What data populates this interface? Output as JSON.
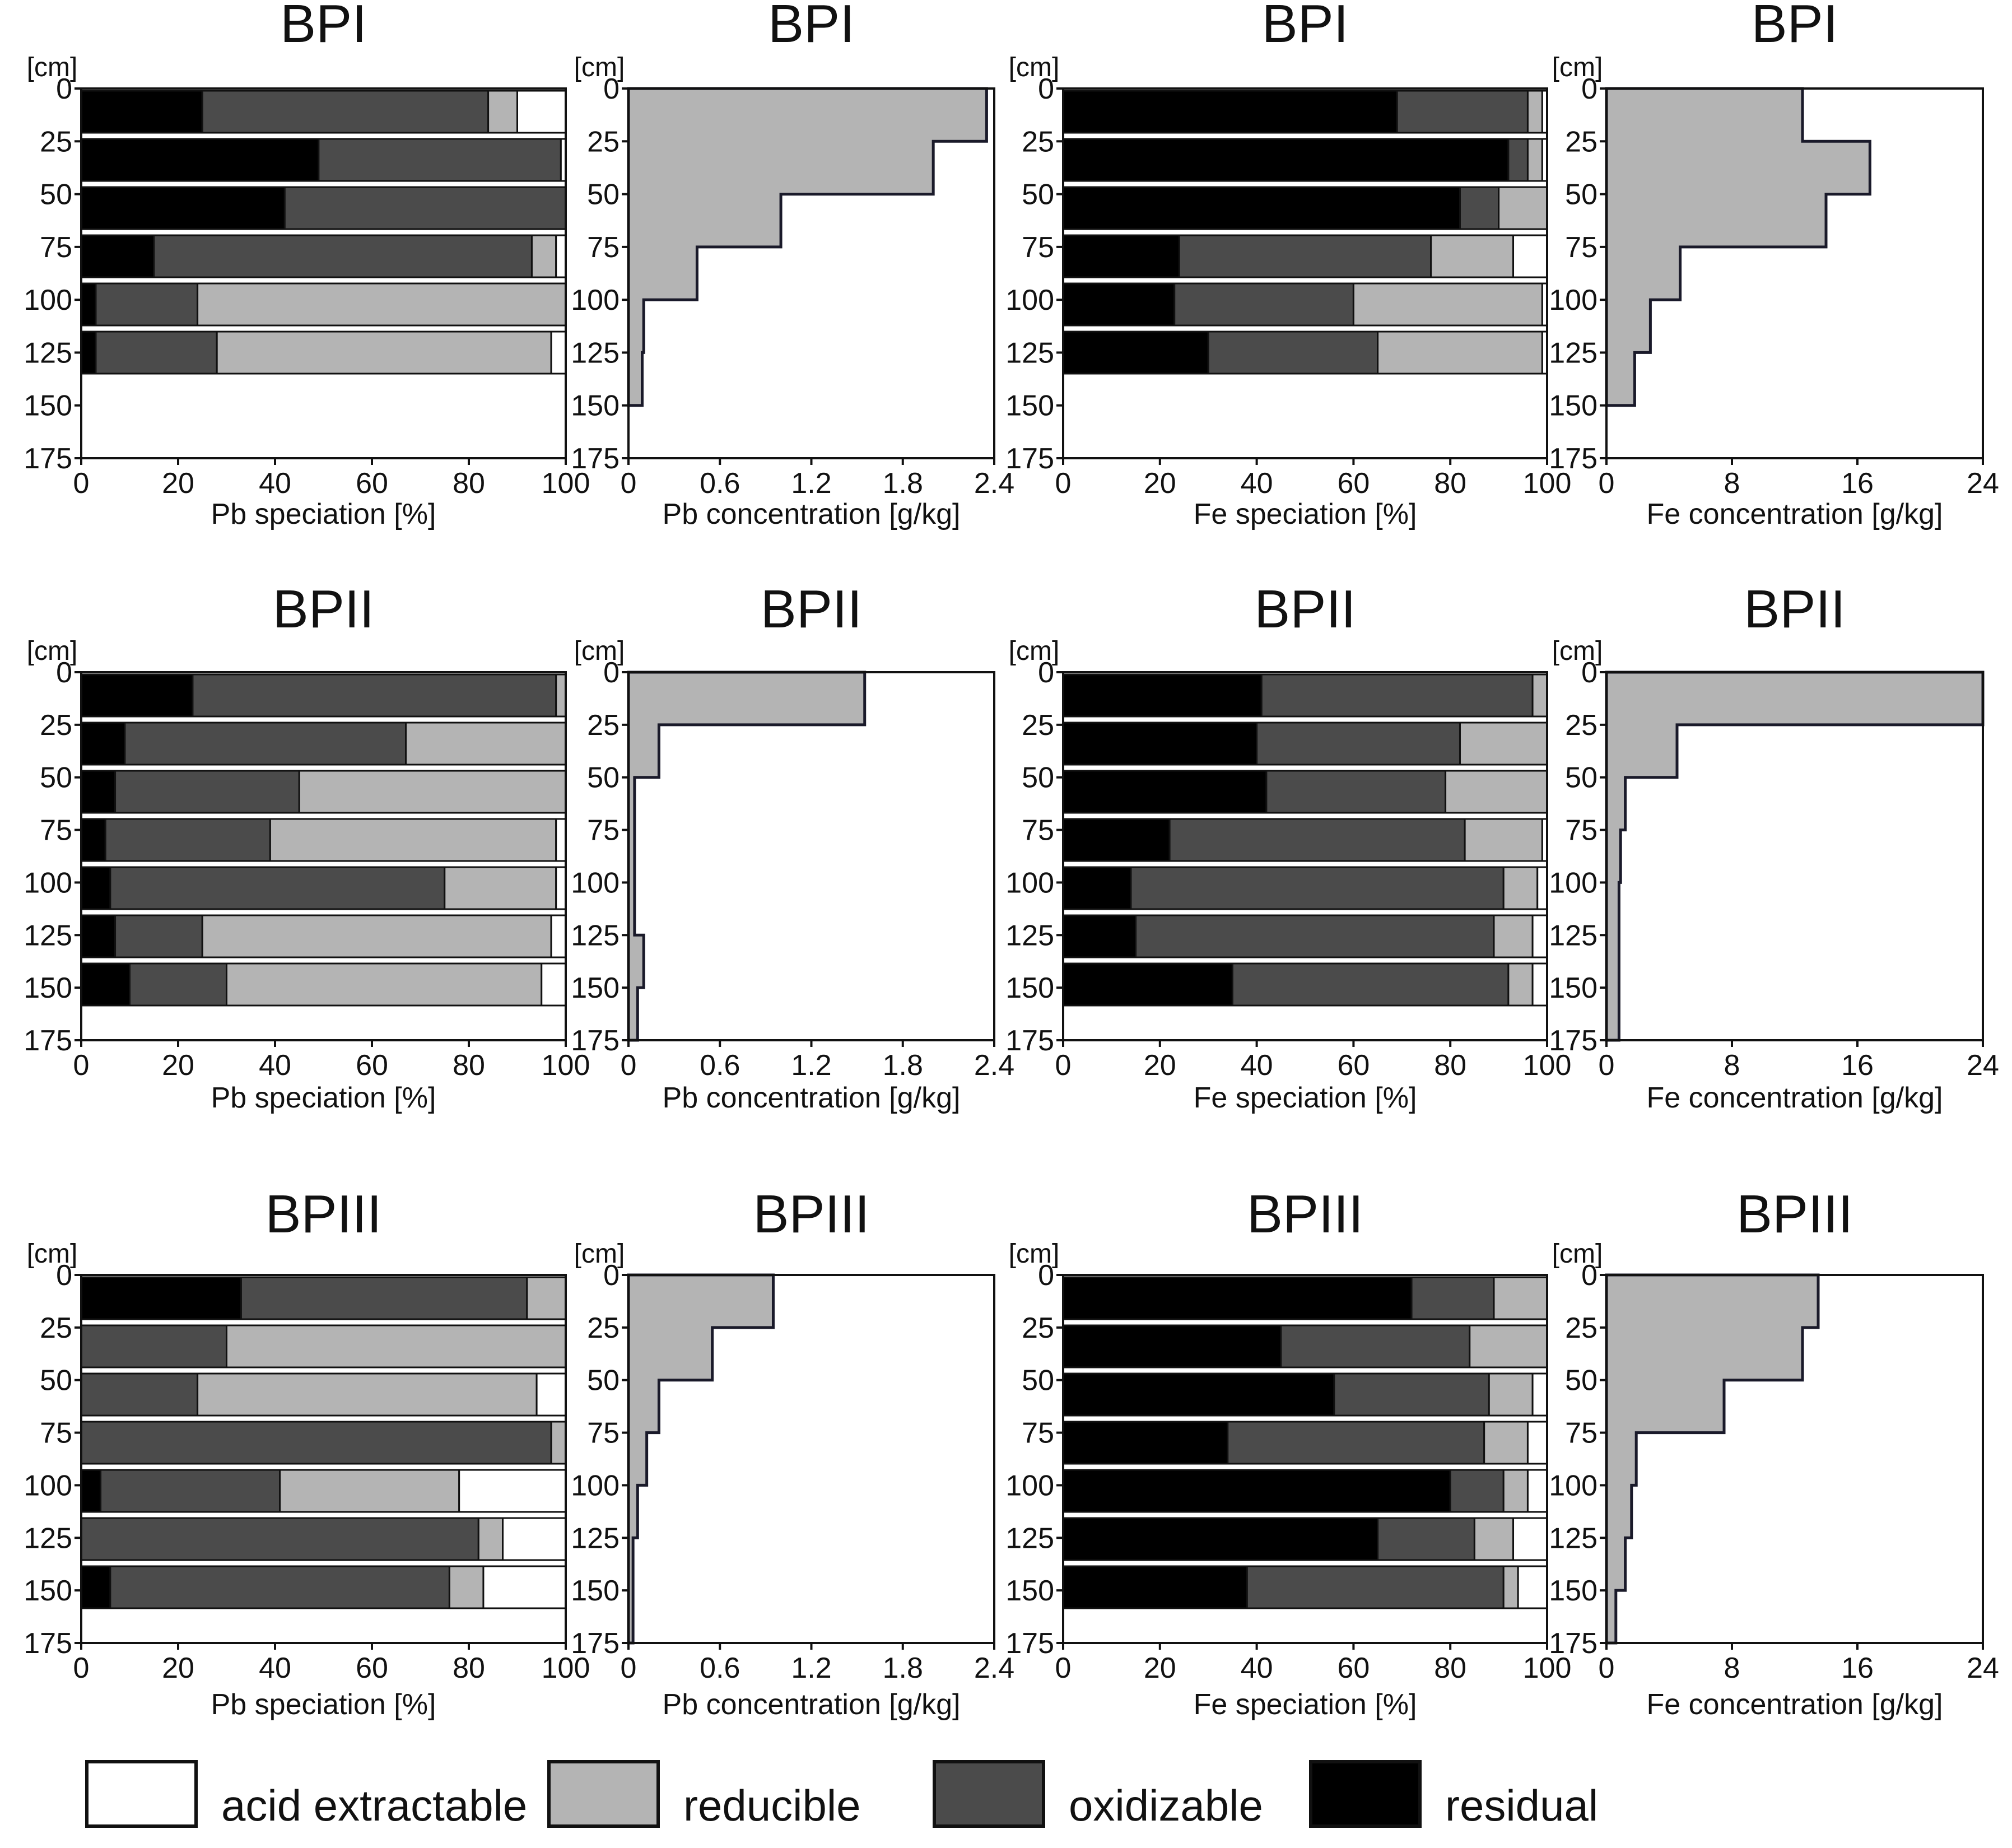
{
  "legend": [
    {
      "key": "acid",
      "label": "acid extractable",
      "color": "#ffffff"
    },
    {
      "key": "red",
      "label": "reducible",
      "color": "#b4b4b4"
    },
    {
      "key": "oxi",
      "label": "oxidizable",
      "color": "#4b4b4b"
    },
    {
      "key": "res",
      "label": "residual",
      "color": "#000000"
    }
  ],
  "chart_data": [
    {
      "type": "bar",
      "stacked": true,
      "orientation": "horizontal",
      "title": "BPI",
      "xlabel": "Pb speciation [%]",
      "ylabel": "[cm]",
      "xlim": [
        0,
        100
      ],
      "xticks": [
        "0",
        "20",
        "40",
        "60",
        "80",
        "100"
      ],
      "ylim": [
        0,
        175
      ],
      "yticks": [
        "0",
        "25",
        "50",
        "75",
        "100",
        "125",
        "150",
        "175"
      ],
      "depth_bins": [
        [
          0,
          25
        ],
        [
          25,
          50
        ],
        [
          50,
          75
        ],
        [
          75,
          100
        ],
        [
          100,
          125
        ],
        [
          125,
          150
        ]
      ],
      "series": [
        {
          "name": "residual",
          "values": [
            25,
            49,
            42,
            15,
            3,
            3
          ]
        },
        {
          "name": "oxidizable",
          "values": [
            59,
            50,
            58,
            78,
            21,
            25
          ]
        },
        {
          "name": "reducible",
          "values": [
            6,
            0,
            0,
            5,
            76,
            69
          ]
        },
        {
          "name": "acid extractable",
          "values": [
            10,
            1,
            0,
            2,
            0,
            3
          ]
        }
      ]
    },
    {
      "type": "step",
      "title": "BPI",
      "xlabel": "Pb concentration [g/kg]",
      "ylabel": "[cm]",
      "xlim": [
        0,
        2.4
      ],
      "xticks": [
        "0",
        "0.6",
        "1.2",
        "1.8",
        "2.4"
      ],
      "ylim": [
        0,
        175
      ],
      "yticks": [
        "0",
        "25",
        "50",
        "75",
        "100",
        "125",
        "150",
        "175"
      ],
      "depth_bins": [
        [
          0,
          25
        ],
        [
          25,
          50
        ],
        [
          50,
          75
        ],
        [
          75,
          100
        ],
        [
          100,
          125
        ],
        [
          125,
          150
        ]
      ],
      "values": [
        2.35,
        2.0,
        1.0,
        0.45,
        0.1,
        0.09
      ]
    },
    {
      "type": "bar",
      "stacked": true,
      "orientation": "horizontal",
      "title": "BPI",
      "xlabel": "Fe speciation [%]",
      "ylabel": "[cm]",
      "xlim": [
        0,
        100
      ],
      "xticks": [
        "0",
        "20",
        "40",
        "60",
        "80",
        "100"
      ],
      "ylim": [
        0,
        175
      ],
      "yticks": [
        "0",
        "25",
        "50",
        "75",
        "100",
        "125",
        "150",
        "175"
      ],
      "depth_bins": [
        [
          0,
          25
        ],
        [
          25,
          50
        ],
        [
          50,
          75
        ],
        [
          75,
          100
        ],
        [
          100,
          125
        ],
        [
          125,
          150
        ]
      ],
      "series": [
        {
          "name": "residual",
          "values": [
            69,
            92,
            82,
            24,
            23,
            30
          ]
        },
        {
          "name": "oxidizable",
          "values": [
            27,
            4,
            8,
            52,
            37,
            35
          ]
        },
        {
          "name": "reducible",
          "values": [
            3,
            3,
            10,
            17,
            39,
            34
          ]
        },
        {
          "name": "acid extractable",
          "values": [
            1,
            1,
            0,
            7,
            1,
            1
          ]
        }
      ]
    },
    {
      "type": "step",
      "title": "BPI",
      "xlabel": "Fe concentration [g/kg]",
      "ylabel": "[cm]",
      "xlim": [
        0,
        24
      ],
      "xticks": [
        "0",
        "8",
        "16",
        "24"
      ],
      "ylim": [
        0,
        175
      ],
      "yticks": [
        "0",
        "25",
        "50",
        "75",
        "100",
        "125",
        "150",
        "175"
      ],
      "depth_bins": [
        [
          0,
          25
        ],
        [
          25,
          50
        ],
        [
          50,
          75
        ],
        [
          75,
          100
        ],
        [
          100,
          125
        ],
        [
          125,
          150
        ]
      ],
      "values": [
        12.5,
        16.8,
        14.0,
        4.7,
        2.8,
        1.8
      ]
    },
    {
      "type": "bar",
      "stacked": true,
      "orientation": "horizontal",
      "title": "BPII",
      "xlabel": "Pb speciation [%]",
      "ylabel": "[cm]",
      "xlim": [
        0,
        100
      ],
      "xticks": [
        "0",
        "20",
        "40",
        "60",
        "80",
        "100"
      ],
      "ylim": [
        0,
        175
      ],
      "yticks": [
        "0",
        "25",
        "50",
        "75",
        "100",
        "125",
        "150",
        "175"
      ],
      "depth_bins": [
        [
          0,
          25
        ],
        [
          25,
          50
        ],
        [
          50,
          75
        ],
        [
          75,
          100
        ],
        [
          100,
          125
        ],
        [
          125,
          150
        ],
        [
          150,
          175
        ]
      ],
      "series": [
        {
          "name": "residual",
          "values": [
            23,
            9,
            7,
            5,
            6,
            7,
            10
          ]
        },
        {
          "name": "oxidizable",
          "values": [
            75,
            58,
            38,
            34,
            69,
            18,
            20
          ]
        },
        {
          "name": "reducible",
          "values": [
            2,
            33,
            55,
            59,
            23,
            72,
            65
          ]
        },
        {
          "name": "acid extractable",
          "values": [
            0,
            0,
            0,
            2,
            2,
            3,
            5
          ]
        }
      ]
    },
    {
      "type": "step",
      "title": "BPII",
      "xlabel": "Pb concentration [g/kg]",
      "ylabel": "[cm]",
      "xlim": [
        0,
        2.4
      ],
      "xticks": [
        "0",
        "0.6",
        "1.2",
        "1.8",
        "2.4"
      ],
      "ylim": [
        0,
        175
      ],
      "yticks": [
        "0",
        "25",
        "50",
        "75",
        "100",
        "125",
        "150",
        "175"
      ],
      "depth_bins": [
        [
          0,
          25
        ],
        [
          25,
          50
        ],
        [
          50,
          75
        ],
        [
          75,
          100
        ],
        [
          100,
          125
        ],
        [
          125,
          150
        ],
        [
          150,
          175
        ]
      ],
      "values": [
        1.55,
        0.2,
        0.04,
        0.04,
        0.04,
        0.1,
        0.06
      ]
    },
    {
      "type": "bar",
      "stacked": true,
      "orientation": "horizontal",
      "title": "BPII",
      "xlabel": "Fe speciation [%]",
      "ylabel": "[cm]",
      "xlim": [
        0,
        100
      ],
      "xticks": [
        "0",
        "20",
        "40",
        "60",
        "80",
        "100"
      ],
      "ylim": [
        0,
        175
      ],
      "yticks": [
        "0",
        "25",
        "50",
        "75",
        "100",
        "125",
        "150",
        "175"
      ],
      "depth_bins": [
        [
          0,
          25
        ],
        [
          25,
          50
        ],
        [
          50,
          75
        ],
        [
          75,
          100
        ],
        [
          100,
          125
        ],
        [
          125,
          150
        ],
        [
          150,
          175
        ]
      ],
      "series": [
        {
          "name": "residual",
          "values": [
            41,
            40,
            42,
            22,
            14,
            15,
            35
          ]
        },
        {
          "name": "oxidizable",
          "values": [
            56,
            42,
            37,
            61,
            77,
            74,
            57
          ]
        },
        {
          "name": "reducible",
          "values": [
            3,
            18,
            21,
            16,
            7,
            8,
            5
          ]
        },
        {
          "name": "acid extractable",
          "values": [
            0,
            0,
            0,
            1,
            2,
            3,
            3
          ]
        }
      ]
    },
    {
      "type": "step",
      "title": "BPII",
      "xlabel": "Fe concentration [g/kg]",
      "ylabel": "[cm]",
      "xlim": [
        0,
        24
      ],
      "xticks": [
        "0",
        "8",
        "16",
        "24"
      ],
      "ylim": [
        0,
        175
      ],
      "yticks": [
        "0",
        "25",
        "50",
        "75",
        "100",
        "125",
        "150",
        "175"
      ],
      "depth_bins": [
        [
          0,
          25
        ],
        [
          25,
          50
        ],
        [
          50,
          75
        ],
        [
          75,
          100
        ],
        [
          100,
          125
        ],
        [
          125,
          150
        ],
        [
          150,
          175
        ]
      ],
      "values": [
        24,
        4.5,
        1.2,
        0.9,
        0.8,
        0.8,
        0.8
      ]
    },
    {
      "type": "bar",
      "stacked": true,
      "orientation": "horizontal",
      "title": "BPIII",
      "xlabel": "Pb speciation [%]",
      "ylabel": "[cm]",
      "xlim": [
        0,
        100
      ],
      "xticks": [
        "0",
        "20",
        "40",
        "60",
        "80",
        "100"
      ],
      "ylim": [
        0,
        175
      ],
      "yticks": [
        "0",
        "25",
        "50",
        "75",
        "100",
        "125",
        "150",
        "175"
      ],
      "depth_bins": [
        [
          0,
          25
        ],
        [
          25,
          50
        ],
        [
          50,
          75
        ],
        [
          75,
          100
        ],
        [
          100,
          125
        ],
        [
          125,
          150
        ],
        [
          150,
          175
        ]
      ],
      "series": [
        {
          "name": "residual",
          "values": [
            33,
            0,
            0,
            0,
            4,
            0,
            6
          ]
        },
        {
          "name": "oxidizable",
          "values": [
            59,
            30,
            24,
            97,
            37,
            82,
            70
          ]
        },
        {
          "name": "reducible",
          "values": [
            8,
            70,
            70,
            3,
            37,
            5,
            7
          ]
        },
        {
          "name": "acid extractable",
          "values": [
            0,
            0,
            6,
            0,
            22,
            13,
            17
          ]
        }
      ]
    },
    {
      "type": "step",
      "title": "BPIII",
      "xlabel": "Pb concentration [g/kg]",
      "ylabel": "[cm]",
      "xlim": [
        0,
        2.4
      ],
      "xticks": [
        "0",
        "0.6",
        "1.2",
        "1.8",
        "2.4"
      ],
      "ylim": [
        0,
        175
      ],
      "yticks": [
        "0",
        "25",
        "50",
        "75",
        "100",
        "125",
        "150",
        "175"
      ],
      "depth_bins": [
        [
          0,
          25
        ],
        [
          25,
          50
        ],
        [
          50,
          75
        ],
        [
          75,
          100
        ],
        [
          100,
          125
        ],
        [
          125,
          150
        ],
        [
          150,
          175
        ]
      ],
      "values": [
        0.95,
        0.55,
        0.2,
        0.12,
        0.06,
        0.03,
        0.03
      ]
    },
    {
      "type": "bar",
      "stacked": true,
      "orientation": "horizontal",
      "title": "BPIII",
      "xlabel": "Fe speciation [%]",
      "ylabel": "[cm]",
      "xlim": [
        0,
        100
      ],
      "xticks": [
        "0",
        "20",
        "40",
        "60",
        "80",
        "100"
      ],
      "ylim": [
        0,
        175
      ],
      "yticks": [
        "0",
        "25",
        "50",
        "75",
        "100",
        "125",
        "150",
        "175"
      ],
      "depth_bins": [
        [
          0,
          25
        ],
        [
          25,
          50
        ],
        [
          50,
          75
        ],
        [
          75,
          100
        ],
        [
          100,
          125
        ],
        [
          125,
          150
        ],
        [
          150,
          175
        ]
      ],
      "series": [
        {
          "name": "residual",
          "values": [
            72,
            45,
            56,
            34,
            80,
            65,
            38
          ]
        },
        {
          "name": "oxidizable",
          "values": [
            17,
            39,
            32,
            53,
            11,
            20,
            53
          ]
        },
        {
          "name": "reducible",
          "values": [
            11,
            16,
            9,
            9,
            5,
            8,
            3
          ]
        },
        {
          "name": "acid extractable",
          "values": [
            0,
            0,
            3,
            4,
            4,
            7,
            6
          ]
        }
      ]
    },
    {
      "type": "step",
      "title": "BPIII",
      "xlabel": "Fe concentration [g/kg]",
      "ylabel": "[cm]",
      "xlim": [
        0,
        24
      ],
      "xticks": [
        "0",
        "8",
        "16",
        "24"
      ],
      "ylim": [
        0,
        175
      ],
      "yticks": [
        "0",
        "25",
        "50",
        "75",
        "100",
        "125",
        "150",
        "175"
      ],
      "depth_bins": [
        [
          0,
          25
        ],
        [
          25,
          50
        ],
        [
          50,
          75
        ],
        [
          75,
          100
        ],
        [
          100,
          125
        ],
        [
          125,
          150
        ],
        [
          150,
          175
        ]
      ],
      "values": [
        13.5,
        12.5,
        7.5,
        1.9,
        1.6,
        1.2,
        0.6
      ]
    }
  ]
}
